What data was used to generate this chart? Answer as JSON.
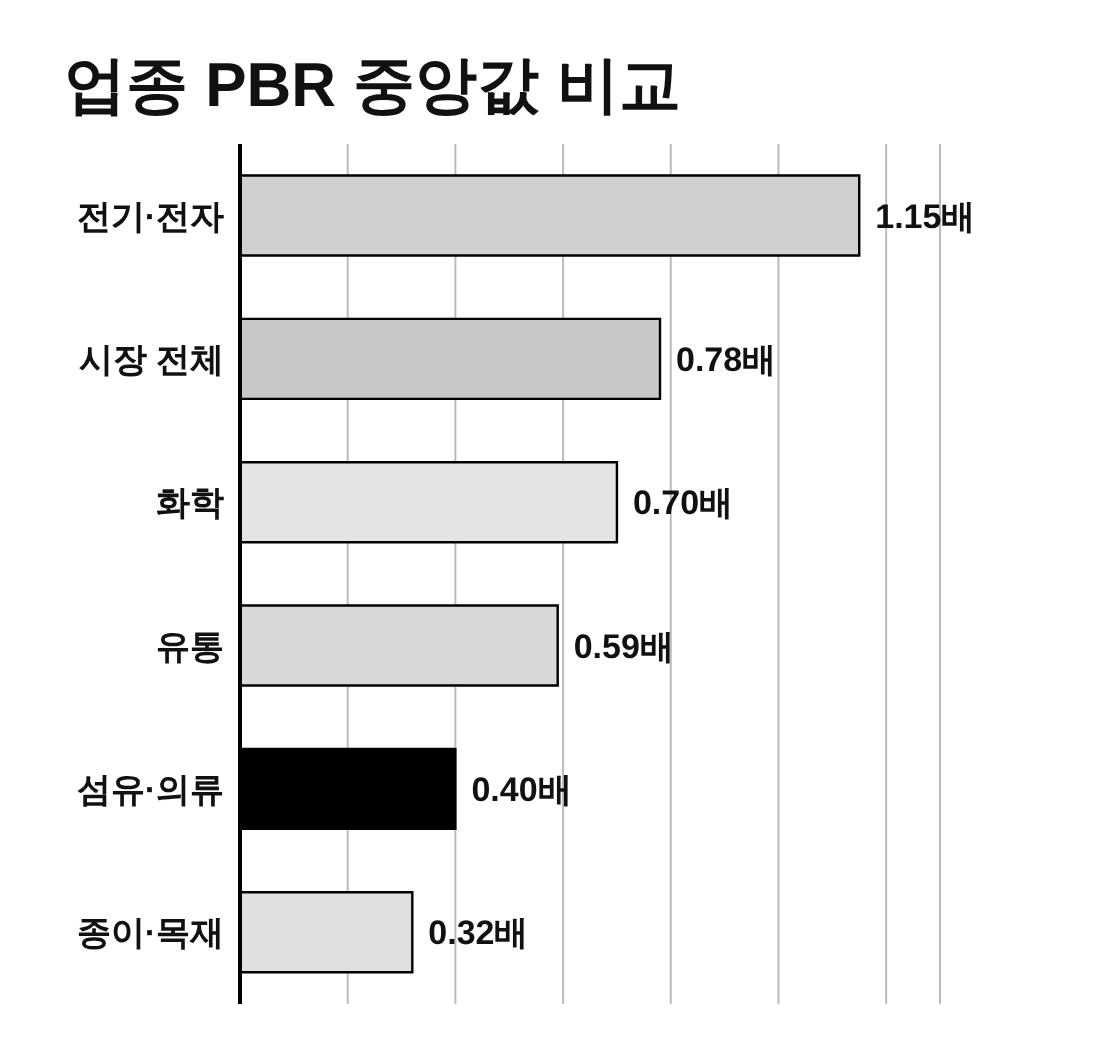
{
  "chart_data": {
    "type": "bar",
    "orientation": "horizontal",
    "title": "업종 PBR 중앙값 비교",
    "categories": [
      "전기·전자",
      "시장 전체",
      "화학",
      "유통",
      "섬유·의류",
      "종이·목재"
    ],
    "values": [
      1.15,
      0.78,
      0.7,
      0.59,
      0.4,
      0.32
    ],
    "value_labels": [
      "1.15배",
      "0.78배",
      "0.70배",
      "0.59배",
      "0.40배",
      "0.32배"
    ],
    "colors": [
      "#d0d0d0",
      "#c8c8c8",
      "#e4e4e4",
      "#d8d8d8",
      "#000000",
      "#e0e0e0"
    ],
    "xlim": [
      0,
      1.3
    ],
    "xticks": [
      {
        "value": 0,
        "label": null
      },
      {
        "value": 0.2,
        "label": null
      },
      {
        "value": 0.4,
        "label": null
      },
      {
        "value": 0.6,
        "label": null
      },
      {
        "value": 0.8,
        "label": null
      },
      {
        "value": 1.0,
        "label": null
      },
      {
        "value": 1.2,
        "label": null
      }
    ],
    "grid": "x"
  }
}
